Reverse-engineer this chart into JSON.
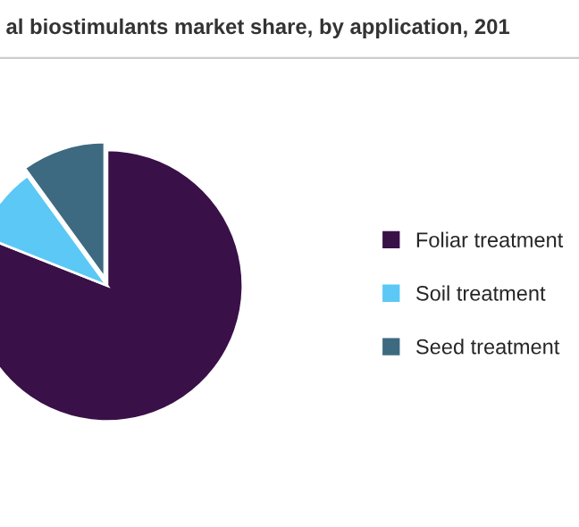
{
  "chart_data": {
    "type": "pie",
    "title": "al biostimulants market share, by application, 201",
    "categories": [
      "Foliar treatment",
      "Soil treatment",
      "Seed treatment"
    ],
    "values": [
      81,
      9,
      10
    ],
    "colors": [
      "#3a1048",
      "#5bc8f5",
      "#3d6a80"
    ],
    "legend": "right"
  }
}
